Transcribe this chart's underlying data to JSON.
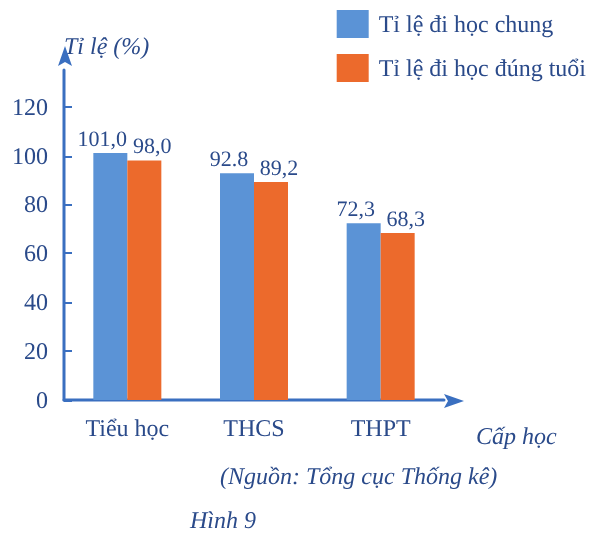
{
  "chart_data": {
    "type": "bar",
    "ylabel": "Tỉ lệ (%)",
    "xlabel": "Cấp học",
    "categories": [
      "Tiểu học",
      "THCS",
      "THPT"
    ],
    "series": [
      {
        "name": "Tỉ lệ đi học chung",
        "color": "#5b93d6",
        "values": [
          101.0,
          92.8,
          72.3
        ],
        "value_labels": [
          "101,0",
          "92.8",
          "72,3"
        ]
      },
      {
        "name": "Tỉ lệ đi học đúng tuổi",
        "color": "#ec6a2c",
        "values": [
          98.0,
          89.2,
          68.3
        ],
        "value_labels": [
          "98,0",
          "89,2",
          "68,3"
        ]
      }
    ],
    "ylim": [
      0,
      135
    ],
    "yticks": [
      0,
      20,
      40,
      60,
      80,
      100,
      120
    ],
    "grid": false,
    "legend": "top right",
    "annotations": [
      "(Nguồn: Tổng cục Thống kê)",
      "Hình 9"
    ]
  }
}
